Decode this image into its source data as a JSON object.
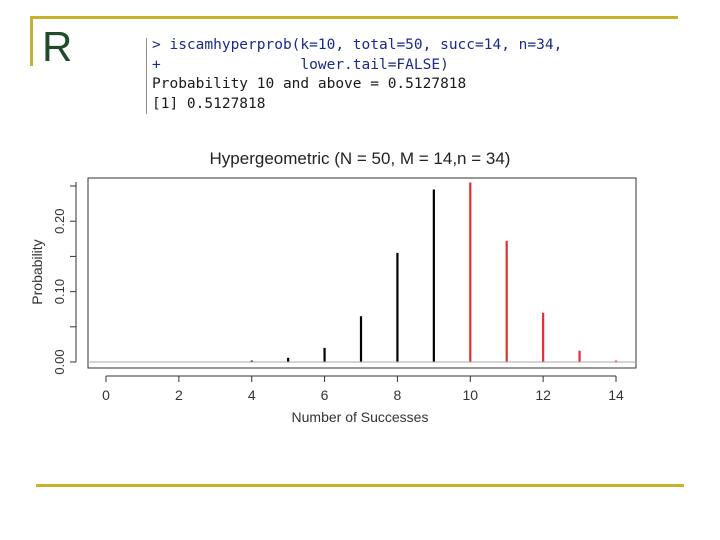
{
  "slide": {
    "title": "R"
  },
  "console": {
    "line1_prompt": ">",
    "line1": "iscamhyperprob(k=10, total=50, succ=14, n=34,",
    "line2_prompt": "+",
    "line2": "                lower.tail=FALSE)",
    "line3": "Probability 10 and above = 0.5127818",
    "line4": "[1] 0.5127818"
  },
  "colors": {
    "accent_gold": "#c8b22a",
    "title_green": "#1f4d2b",
    "bar_below": "#000000",
    "bar_above": "#e03030"
  },
  "chart_data": {
    "type": "bar",
    "title": "Hypergeometric (N = 50, M = 14,n = 34)",
    "xlabel": "Number of Successes",
    "ylabel": "Probability",
    "xlim": [
      0,
      14
    ],
    "ylim": [
      0,
      0.25
    ],
    "x_ticks": [
      "0",
      "2",
      "4",
      "6",
      "8",
      "10",
      "12",
      "14"
    ],
    "y_ticks": [
      "0.00",
      "0.10",
      "0.20"
    ],
    "grid": false,
    "series": [
      {
        "x": [
          4,
          5,
          6,
          7,
          8,
          9
        ],
        "values": [
          0.002,
          0.006,
          0.02,
          0.065,
          0.155,
          0.245
        ],
        "color": "#000000"
      },
      {
        "x": [
          10,
          11,
          12,
          13,
          14
        ],
        "values": [
          0.255,
          0.172,
          0.07,
          0.016,
          0.002
        ],
        "color": "#e03030"
      }
    ]
  }
}
